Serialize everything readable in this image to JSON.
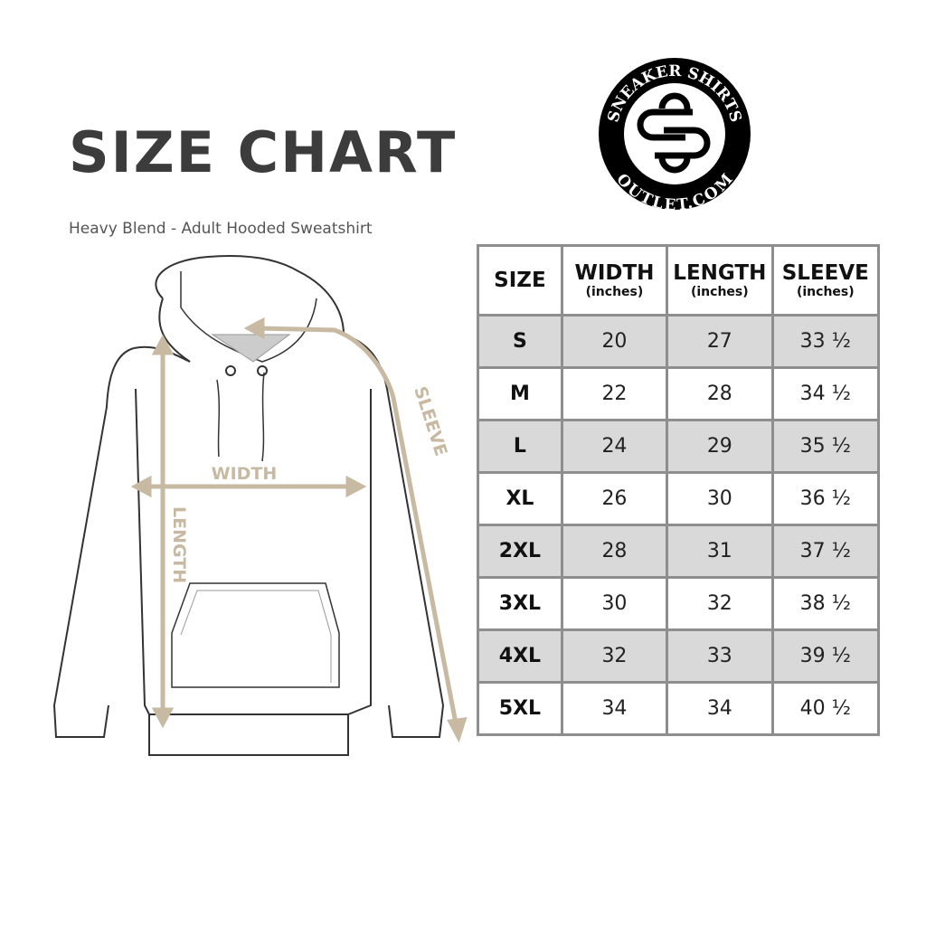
{
  "title": "SIZE CHART",
  "subtitle": "Heavy Blend - Adult Hooded Sweatshirt",
  "logo": {
    "top_text": "SNEAKER SHIRTS",
    "bottom_text": "OUTLET.COM",
    "monogram": "SS"
  },
  "diagram": {
    "width_label": "WIDTH",
    "length_label": "LENGTH",
    "sleeve_label": "SLEEVE",
    "measure_color": "#c8b9a2"
  },
  "table": {
    "headers": [
      {
        "label": "SIZE",
        "unit": ""
      },
      {
        "label": "WIDTH",
        "unit": "(inches)"
      },
      {
        "label": "LENGTH",
        "unit": "(inches)"
      },
      {
        "label": "SLEEVE",
        "unit": "(inches)"
      }
    ],
    "rows": [
      [
        "S",
        "20",
        "27",
        "33 ½"
      ],
      [
        "M",
        "22",
        "28",
        "34 ½"
      ],
      [
        "L",
        "24",
        "29",
        "35 ½"
      ],
      [
        "XL",
        "26",
        "30",
        "36 ½"
      ],
      [
        "2XL",
        "28",
        "31",
        "37 ½"
      ],
      [
        "3XL",
        "30",
        "32",
        "38 ½"
      ],
      [
        "4XL",
        "32",
        "33",
        "39 ½"
      ],
      [
        "5XL",
        "34",
        "34",
        "40 ½"
      ]
    ],
    "shade_color": "#d9d9d9",
    "border_color": "#8e8e8e"
  }
}
